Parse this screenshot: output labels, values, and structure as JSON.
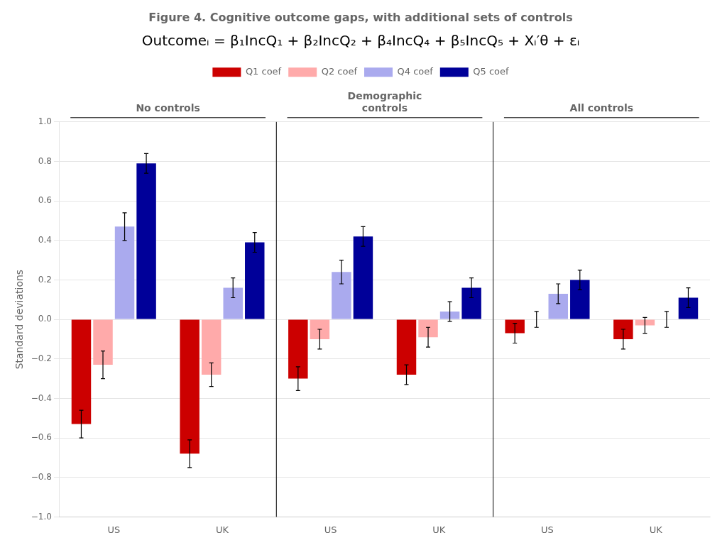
{
  "chart_data": {
    "type": "bar",
    "title": "Figure 4. Cognitive outcome gaps, with additional sets of controls",
    "annotations": [
      "Outcomeᵢ = β₁IncQ₁ + β₂IncQ₂ + β₄IncQ₄ + β₅IncQ₅ + Xᵢ′θ + εᵢ"
    ],
    "ylabel": "Standard deviations",
    "categories": [
      "US",
      "UK",
      "US",
      "UK",
      "US",
      "UK"
    ],
    "groups": [
      {
        "name": "No controls",
        "span": 2
      },
      {
        "name": "Demographic\ncontrols",
        "span": 2
      },
      {
        "name": "All controls",
        "span": 2
      }
    ],
    "series": [
      {
        "name": "Q1 coef",
        "color": "#cc0000",
        "values": [
          -0.53,
          -0.68,
          -0.3,
          -0.28,
          -0.07,
          -0.1
        ],
        "errors": [
          0.07,
          0.07,
          0.06,
          0.05,
          0.05,
          0.05
        ]
      },
      {
        "name": "Q2 coef",
        "color": "#ffaaaa",
        "values": [
          -0.23,
          -0.28,
          -0.1,
          -0.09,
          0.0,
          -0.03
        ],
        "errors": [
          0.07,
          0.06,
          0.05,
          0.05,
          0.04,
          0.04
        ]
      },
      {
        "name": "Q4 coef",
        "color": "#aaaaee",
        "values": [
          0.47,
          0.16,
          0.24,
          0.04,
          0.13,
          0.0
        ],
        "errors": [
          0.07,
          0.05,
          0.06,
          0.05,
          0.05,
          0.04
        ]
      },
      {
        "name": "Q5 coef",
        "color": "#000099",
        "values": [
          0.79,
          0.39,
          0.42,
          0.16,
          0.2,
          0.11
        ],
        "errors": [
          0.05,
          0.05,
          0.05,
          0.05,
          0.05,
          0.05
        ]
      }
    ],
    "ylim": [
      -1.0,
      1.0
    ],
    "yticks": [
      {
        "value": -1.0,
        "label": "−1.0"
      },
      {
        "value": -0.8,
        "label": "−0.8"
      },
      {
        "value": -0.6,
        "label": "−0.6"
      },
      {
        "value": -0.4,
        "label": "−0.4"
      },
      {
        "value": -0.2,
        "label": "−0.2"
      },
      {
        "value": 0.0,
        "label": "0.0"
      },
      {
        "value": 0.2,
        "label": "0.2"
      },
      {
        "value": 0.4,
        "label": "0.4"
      },
      {
        "value": 0.6,
        "label": "0.6"
      },
      {
        "value": 0.8,
        "label": "0.8"
      },
      {
        "value": 1.0,
        "label": "1.0"
      }
    ],
    "grid": true,
    "legend": "top"
  }
}
